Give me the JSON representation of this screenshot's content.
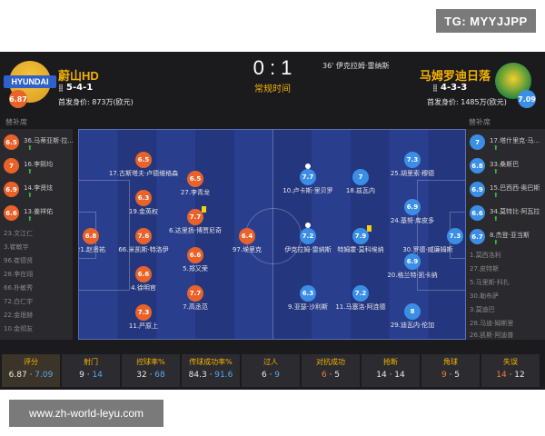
{
  "watermark_top": "TG: MYYJJPP",
  "watermark_bottom": "www.zh-world-leyu.com",
  "match": {
    "score": "0 : 1",
    "status": "常规时间",
    "event": "36' 伊克拉姆·雷纳斯"
  },
  "home": {
    "name": "蔚山HD",
    "logo_text": "HYUNDAI",
    "formation": "5-4-1",
    "value": "首发身价: 873万(欧元)",
    "rating": "6.87",
    "color": "#e8622a"
  },
  "away": {
    "name": "马姆罗迪日落",
    "formation": "4-3-3",
    "value": "首发身价: 1485万(欧元)",
    "rating": "7.09",
    "color": "#3a8ee6"
  },
  "bench_title": "替补席",
  "home_bench": [
    {
      "rating": "6.5",
      "label": "36.马蒂亚斯·拉...",
      "sub": true
    },
    {
      "rating": "7",
      "label": "16.李熙均",
      "sub": true
    },
    {
      "rating": "6.9",
      "label": "14.李贤炫",
      "sub": true
    },
    {
      "rating": "6.6",
      "label": "13.姜祥佑",
      "sub": true
    }
  ],
  "home_bench_plain": [
    "23.文江仁",
    "3.崔敏宇",
    "96.崔德贤",
    "28.李在翊",
    "66.朴敏秀",
    "72.白仁宇",
    "22.金珉赫",
    "10.金彻友"
  ],
  "away_bench": [
    {
      "rating": "7",
      "label": "17.塔什里克·马...",
      "sub": true
    },
    {
      "rating": "6.8",
      "label": "33.桑斯巴",
      "sub": true
    },
    {
      "rating": "6.9",
      "label": "15.巴西西·奥巴斯",
      "sub": true
    },
    {
      "rating": "6.6",
      "label": "34.莫特比·阿瓦拉",
      "sub": true
    },
    {
      "rating": "6.7",
      "label": "8.杰登·亚当斯",
      "sub": true
    }
  ],
  "away_bench_plain": [
    "1.莫西洛利",
    "27.皮特斯",
    "5.马里斯·科扎",
    "30.勒布萨",
    "3.莫迪巴",
    "28.马迪·姆斯里",
    "26.凯斯·阿迪普"
  ],
  "home_players": [
    {
      "rating": "6.8",
      "label": "21.赵贤祐"
    },
    {
      "rating": "6.5",
      "label": "17.古斯塔夫·卢德维格森"
    },
    {
      "rating": "6.3",
      "label": "19.金英权"
    },
    {
      "rating": "7.6",
      "label": "66.米凯斯·特洛伊"
    },
    {
      "rating": "6.6",
      "label": "4.徐明官"
    },
    {
      "rating": "7.3",
      "label": "11.严原上"
    },
    {
      "rating": "6.5",
      "label": "27.李青龙"
    },
    {
      "rating": "7.7",
      "label": "6.达里扬·博贾尼奇"
    },
    {
      "rating": "6.6",
      "label": "5.郑又荣"
    },
    {
      "rating": "7.7",
      "label": "7.高丞范"
    },
    {
      "rating": "6.4",
      "label": "97.埃里克"
    }
  ],
  "away_players": [
    {
      "rating": "7.7",
      "label": "10.卢卡斯·里贝罗"
    },
    {
      "rating": "7.2",
      "label": "伊克拉姆·雷纳斯"
    },
    {
      "rating": "6.3",
      "label": "9.亚瑟·沙利斯"
    },
    {
      "rating": "7",
      "label": "18.兹瓦内"
    },
    {
      "rating": "7.9",
      "label": "特姆霍·莫科埃纳"
    },
    {
      "rating": "7.2",
      "label": "11.马塞洛·阿连德"
    },
    {
      "rating": "7.3",
      "label": "25.胡里索·穆德"
    },
    {
      "rating": "6.9",
      "label": "24.基努·库皮多"
    },
    {
      "rating": "6.9",
      "label": "20.格兰特·凯卡纳"
    },
    {
      "rating": "8",
      "label": "29.迪瓦内·伦加"
    },
    {
      "rating": "7.3",
      "label": "30.罗德·威廉姆斯"
    }
  ],
  "stats": [
    {
      "label": "评分",
      "home": "6.87",
      "away": "7.09"
    },
    {
      "label": "射门",
      "home": "9",
      "away": "14"
    },
    {
      "label": "控球率%",
      "home": "32",
      "away": "68"
    },
    {
      "label": "传球成功率%",
      "home": "84.3",
      "away": "91.6"
    },
    {
      "label": "过人",
      "home": "6",
      "away": "9"
    },
    {
      "label": "对抗成功",
      "home": "6",
      "away": "5"
    },
    {
      "label": "抢断",
      "home": "14",
      "away": "14"
    },
    {
      "label": "角球",
      "home": "9",
      "away": "5"
    },
    {
      "label": "失误",
      "home": "14",
      "away": "12"
    }
  ]
}
